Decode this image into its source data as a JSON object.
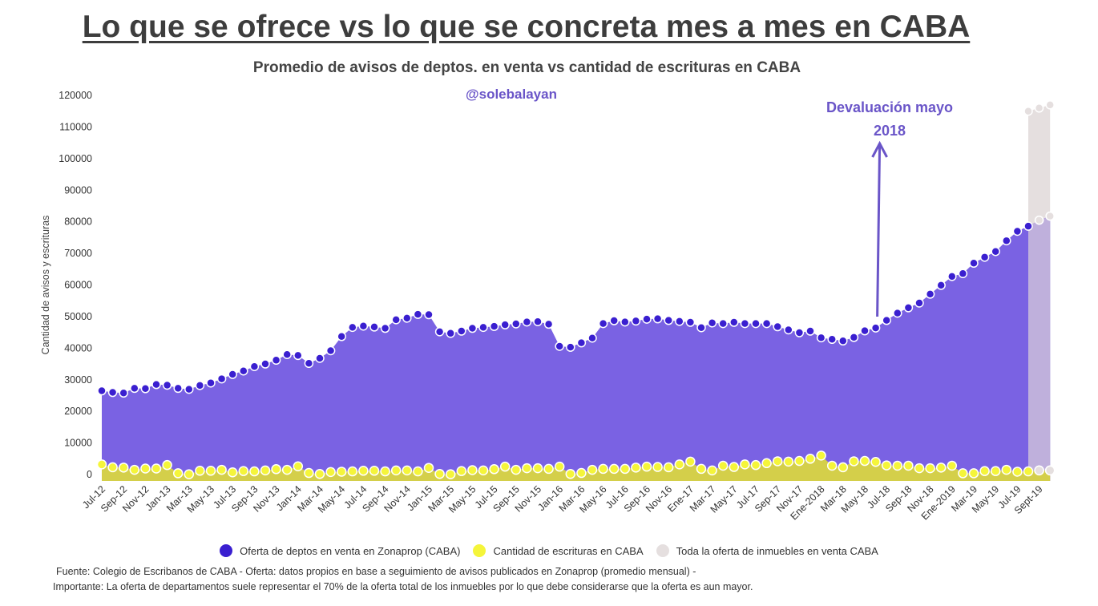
{
  "title": "Lo que se ofrece vs lo que se concreta mes a mes en CABA",
  "subtitle": "Promedio de avisos de deptos. en venta vs cantidad de escrituras en CABA",
  "handle": "@solebalayan",
  "annotation": {
    "line1": "Devaluación mayo",
    "line2": "2018"
  },
  "footer": {
    "source": "Fuente: Colegio de  Escribanos de CABA  -  Oferta: datos propios en base a seguimiento de avisos publicados en Zonaprop (promedio mensual) -",
    "note": "Importante: La oferta de departamentos suele representar el 70% de la oferta total de los inmuebles por lo que debe considerarse que la oferta es aun mayor."
  },
  "colors": {
    "oferta": "#3a1fd0",
    "oferta_area": "#7a62e3",
    "escrituras": "#f5f53a",
    "escrituras_area": "#d4cf4a",
    "total": "#e5dfdf",
    "total_area": "#bfb0dc",
    "accent": "#6a55c8"
  },
  "chart_data": {
    "type": "area",
    "ylabel": "Cantidad de avisos y escrituras",
    "ylim": [
      0,
      120000
    ],
    "yticks": [
      0,
      10000,
      20000,
      30000,
      40000,
      50000,
      60000,
      70000,
      80000,
      90000,
      100000,
      110000,
      120000
    ],
    "grid": false,
    "legend_position": "bottom",
    "x_tick_labels": [
      "Jul-12",
      "Sep-12",
      "Nov-12",
      "Jan-13",
      "Mar-13",
      "May-13",
      "Jul-13",
      "Sep-13",
      "Nov-13",
      "Jan-14",
      "Mar-14",
      "May-14",
      "Jul-14",
      "Sep-14",
      "Nov-14",
      "Jan-15",
      "Mar-15",
      "May-15",
      "Jul-15",
      "Sep-15",
      "Nov-15",
      "Jan-16",
      "Mar-16",
      "May-16",
      "Jul-16",
      "Sep-16",
      "Nov-16",
      "Ene-17",
      "Mar-17",
      "May-17",
      "Jul-17",
      "Sep-17",
      "Nov-17",
      "Ene-2018",
      "Mar-18",
      "May-18",
      "Jul-18",
      "Sep-18",
      "Nov-18",
      "Ene-2019",
      "Mar-19",
      "May-19",
      "Jul-19",
      "Sept-19"
    ],
    "series": [
      {
        "name": "Oferta de deptos en venta en Zonaprop (CABA)",
        "values": [
          26500,
          26000,
          25800,
          27300,
          27200,
          28500,
          28300,
          27300,
          27000,
          28200,
          29000,
          30300,
          31700,
          32800,
          34200,
          35000,
          36200,
          38000,
          37700,
          35200,
          36800,
          39200,
          43700,
          46600,
          47000,
          46700,
          46300,
          49000,
          49500,
          50700,
          50600,
          45200,
          44700,
          45400,
          46300,
          46600,
          46900,
          47400,
          47700,
          48300,
          48400,
          47600,
          40600,
          40300,
          41700,
          43200,
          47800,
          48700,
          48300,
          48600,
          49200,
          49300,
          48800,
          48500,
          48200,
          46500,
          48000,
          47800,
          48200,
          47800,
          47800,
          47800,
          46800,
          45800,
          44900,
          45400,
          43300,
          42800,
          42300,
          43400,
          45500,
          46400,
          48800,
          51100,
          52800,
          54300,
          57100,
          59900,
          62700,
          63600,
          66900,
          68800,
          70600,
          74000,
          77000,
          78600,
          80500,
          81800
        ]
      },
      {
        "name": "Cantidad de escrituras en CABA",
        "values": [
          3200,
          2300,
          2200,
          1500,
          1900,
          1900,
          3000,
          400,
          100,
          1200,
          1200,
          1500,
          700,
          1100,
          1000,
          1300,
          1700,
          1500,
          2600,
          500,
          200,
          800,
          900,
          1000,
          1200,
          1200,
          1000,
          1300,
          1300,
          1000,
          2100,
          200,
          100,
          1100,
          1400,
          1300,
          1700,
          2500,
          1500,
          2000,
          2000,
          1800,
          2500,
          200,
          500,
          1500,
          1800,
          1800,
          1800,
          2200,
          2500,
          2400,
          2300,
          3200,
          4100,
          1800,
          1300,
          2800,
          2400,
          3200,
          3000,
          3600,
          4200,
          4100,
          4300,
          5000,
          6000,
          2800,
          2300,
          4200,
          4300,
          4000,
          2900,
          2800,
          2800,
          2000,
          2000,
          2200,
          2800,
          400,
          400,
          1100,
          1100,
          1500,
          900,
          1000,
          1300,
          1300
        ]
      },
      {
        "name": "Toda la oferta de inmuebles en venta CABA",
        "x_start_index": 85,
        "values": [
          115000,
          116000,
          117000
        ]
      }
    ]
  }
}
